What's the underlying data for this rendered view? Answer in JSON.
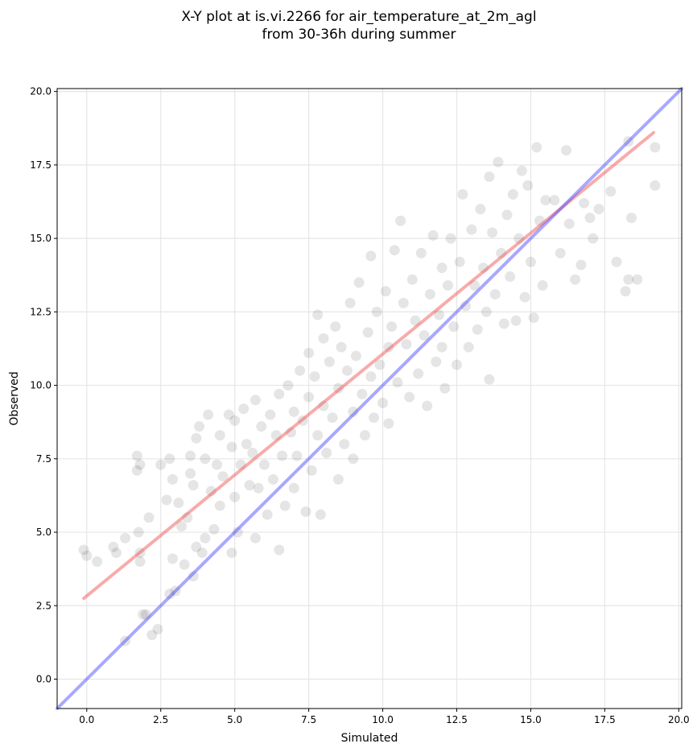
{
  "chart_data": {
    "type": "scatter",
    "title": [
      "X-Y plot at is.vi.2266 for air_temperature_at_2m_agl",
      "from 30-36h during summer"
    ],
    "xlabel": "Simulated",
    "ylabel": "Observed",
    "xlim": [
      -1.0,
      20.1
    ],
    "ylim": [
      -1.0,
      20.1
    ],
    "xticks": [
      "0.0",
      "2.5",
      "5.0",
      "7.5",
      "10.0",
      "12.5",
      "15.0",
      "17.5",
      "20.0"
    ],
    "yticks": [
      "0.0",
      "2.5",
      "5.0",
      "7.5",
      "10.0",
      "12.5",
      "15.0",
      "17.5",
      "20.0"
    ],
    "grid": true,
    "point_color": "#000000",
    "point_alpha": 0.1,
    "points": [
      [
        -0.1,
        4.4
      ],
      [
        0.0,
        4.2
      ],
      [
        0.35,
        4.0
      ],
      [
        0.9,
        4.5
      ],
      [
        1.0,
        4.3
      ],
      [
        1.3,
        1.3
      ],
      [
        1.3,
        4.8
      ],
      [
        1.7,
        7.6
      ],
      [
        1.7,
        7.1
      ],
      [
        1.8,
        7.3
      ],
      [
        1.75,
        5.0
      ],
      [
        1.8,
        4.3
      ],
      [
        1.8,
        4.0
      ],
      [
        1.9,
        2.2
      ],
      [
        2.0,
        2.2
      ],
      [
        2.1,
        5.5
      ],
      [
        2.2,
        1.5
      ],
      [
        2.4,
        1.7
      ],
      [
        2.5,
        7.3
      ],
      [
        2.7,
        6.1
      ],
      [
        2.8,
        7.5
      ],
      [
        2.8,
        2.9
      ],
      [
        2.9,
        6.8
      ],
      [
        2.9,
        4.1
      ],
      [
        3.0,
        3.0
      ],
      [
        3.1,
        6.0
      ],
      [
        3.2,
        5.2
      ],
      [
        3.3,
        3.9
      ],
      [
        3.4,
        5.5
      ],
      [
        3.5,
        7.6
      ],
      [
        3.5,
        7.0
      ],
      [
        3.6,
        6.6
      ],
      [
        3.6,
        3.5
      ],
      [
        3.7,
        8.2
      ],
      [
        3.7,
        4.5
      ],
      [
        3.8,
        8.6
      ],
      [
        3.9,
        4.3
      ],
      [
        4.0,
        7.5
      ],
      [
        4.0,
        4.8
      ],
      [
        4.1,
        9.0
      ],
      [
        4.2,
        6.4
      ],
      [
        4.3,
        5.1
      ],
      [
        4.4,
        7.3
      ],
      [
        4.5,
        8.3
      ],
      [
        4.5,
        5.9
      ],
      [
        4.6,
        6.9
      ],
      [
        4.8,
        9.0
      ],
      [
        4.9,
        7.9
      ],
      [
        4.9,
        4.3
      ],
      [
        5.0,
        6.2
      ],
      [
        5.0,
        8.8
      ],
      [
        5.1,
        5.0
      ],
      [
        5.2,
        7.3
      ],
      [
        5.3,
        9.2
      ],
      [
        5.4,
        8.0
      ],
      [
        5.5,
        6.6
      ],
      [
        5.6,
        7.7
      ],
      [
        5.7,
        9.5
      ],
      [
        5.7,
        4.8
      ],
      [
        5.8,
        6.5
      ],
      [
        5.9,
        8.6
      ],
      [
        6.0,
        7.3
      ],
      [
        6.1,
        5.6
      ],
      [
        6.2,
        9.0
      ],
      [
        6.3,
        6.8
      ],
      [
        6.4,
        8.3
      ],
      [
        6.5,
        9.7
      ],
      [
        6.5,
        4.4
      ],
      [
        6.6,
        7.6
      ],
      [
        6.7,
        5.9
      ],
      [
        6.8,
        10.0
      ],
      [
        6.9,
        8.4
      ],
      [
        7.0,
        6.5
      ],
      [
        7.0,
        9.1
      ],
      [
        7.1,
        7.6
      ],
      [
        7.2,
        10.5
      ],
      [
        7.3,
        8.8
      ],
      [
        7.4,
        5.7
      ],
      [
        7.5,
        9.6
      ],
      [
        7.5,
        11.1
      ],
      [
        7.6,
        7.1
      ],
      [
        7.7,
        10.3
      ],
      [
        7.8,
        8.3
      ],
      [
        7.8,
        12.4
      ],
      [
        7.9,
        5.6
      ],
      [
        8.0,
        9.3
      ],
      [
        8.0,
        11.6
      ],
      [
        8.1,
        7.7
      ],
      [
        8.2,
        10.8
      ],
      [
        8.3,
        8.9
      ],
      [
        8.4,
        12.0
      ],
      [
        8.5,
        6.8
      ],
      [
        8.5,
        9.9
      ],
      [
        8.6,
        11.3
      ],
      [
        8.7,
        8.0
      ],
      [
        8.8,
        10.5
      ],
      [
        8.9,
        12.8
      ],
      [
        9.0,
        9.1
      ],
      [
        9.0,
        7.5
      ],
      [
        9.1,
        11.0
      ],
      [
        9.2,
        13.5
      ],
      [
        9.3,
        9.7
      ],
      [
        9.4,
        8.3
      ],
      [
        9.5,
        11.8
      ],
      [
        9.6,
        10.3
      ],
      [
        9.6,
        14.4
      ],
      [
        9.7,
        8.9
      ],
      [
        9.8,
        12.5
      ],
      [
        9.9,
        10.7
      ],
      [
        10.0,
        9.4
      ],
      [
        10.1,
        13.2
      ],
      [
        10.2,
        11.3
      ],
      [
        10.2,
        8.7
      ],
      [
        10.3,
        12.0
      ],
      [
        10.4,
        14.6
      ],
      [
        10.5,
        10.1
      ],
      [
        10.6,
        15.6
      ],
      [
        10.7,
        12.8
      ],
      [
        10.8,
        11.4
      ],
      [
        10.9,
        9.6
      ],
      [
        11.0,
        13.6
      ],
      [
        11.1,
        12.2
      ],
      [
        11.2,
        10.4
      ],
      [
        11.3,
        14.5
      ],
      [
        11.4,
        11.7
      ],
      [
        11.5,
        9.3
      ],
      [
        11.6,
        13.1
      ],
      [
        11.7,
        15.1
      ],
      [
        11.8,
        10.8
      ],
      [
        11.9,
        12.4
      ],
      [
        12.0,
        14.0
      ],
      [
        12.0,
        11.3
      ],
      [
        12.1,
        9.9
      ],
      [
        12.2,
        13.4
      ],
      [
        12.3,
        15.0
      ],
      [
        12.4,
        12.0
      ],
      [
        12.5,
        10.7
      ],
      [
        12.6,
        14.2
      ],
      [
        12.7,
        16.5
      ],
      [
        12.8,
        12.7
      ],
      [
        12.9,
        11.3
      ],
      [
        13.0,
        15.3
      ],
      [
        13.1,
        13.4
      ],
      [
        13.2,
        11.9
      ],
      [
        13.3,
        16.0
      ],
      [
        13.4,
        14.0
      ],
      [
        13.5,
        12.5
      ],
      [
        13.6,
        17.1
      ],
      [
        13.6,
        10.2
      ],
      [
        13.7,
        15.2
      ],
      [
        13.8,
        13.1
      ],
      [
        13.9,
        17.6
      ],
      [
        14.0,
        14.5
      ],
      [
        14.1,
        12.1
      ],
      [
        14.2,
        15.8
      ],
      [
        14.3,
        13.7
      ],
      [
        14.4,
        16.5
      ],
      [
        14.5,
        12.2
      ],
      [
        14.6,
        15.0
      ],
      [
        14.7,
        17.3
      ],
      [
        14.8,
        13.0
      ],
      [
        14.9,
        16.8
      ],
      [
        15.0,
        14.2
      ],
      [
        15.1,
        12.3
      ],
      [
        15.2,
        18.1
      ],
      [
        15.3,
        15.6
      ],
      [
        15.4,
        13.4
      ],
      [
        15.5,
        16.3
      ],
      [
        15.8,
        16.3
      ],
      [
        16.0,
        14.5
      ],
      [
        16.2,
        18.0
      ],
      [
        16.3,
        15.5
      ],
      [
        16.5,
        13.6
      ],
      [
        16.7,
        14.1
      ],
      [
        16.8,
        16.2
      ],
      [
        17.0,
        15.7
      ],
      [
        17.1,
        15.0
      ],
      [
        17.3,
        16.0
      ],
      [
        17.7,
        16.6
      ],
      [
        17.9,
        14.2
      ],
      [
        18.2,
        13.2
      ],
      [
        18.3,
        13.6
      ],
      [
        18.3,
        18.3
      ],
      [
        18.4,
        15.7
      ],
      [
        18.6,
        13.6
      ],
      [
        19.2,
        18.1
      ],
      [
        19.2,
        16.8
      ]
    ],
    "lines": [
      {
        "color": "#ef4444",
        "alpha": 0.45,
        "x": [
          -0.1,
          19.15
        ],
        "y": [
          2.75,
          18.6
        ]
      },
      {
        "color": "#3f3fff",
        "alpha": 0.45,
        "x": [
          -1.0,
          20.1
        ],
        "y": [
          -1.0,
          20.1
        ]
      }
    ]
  }
}
